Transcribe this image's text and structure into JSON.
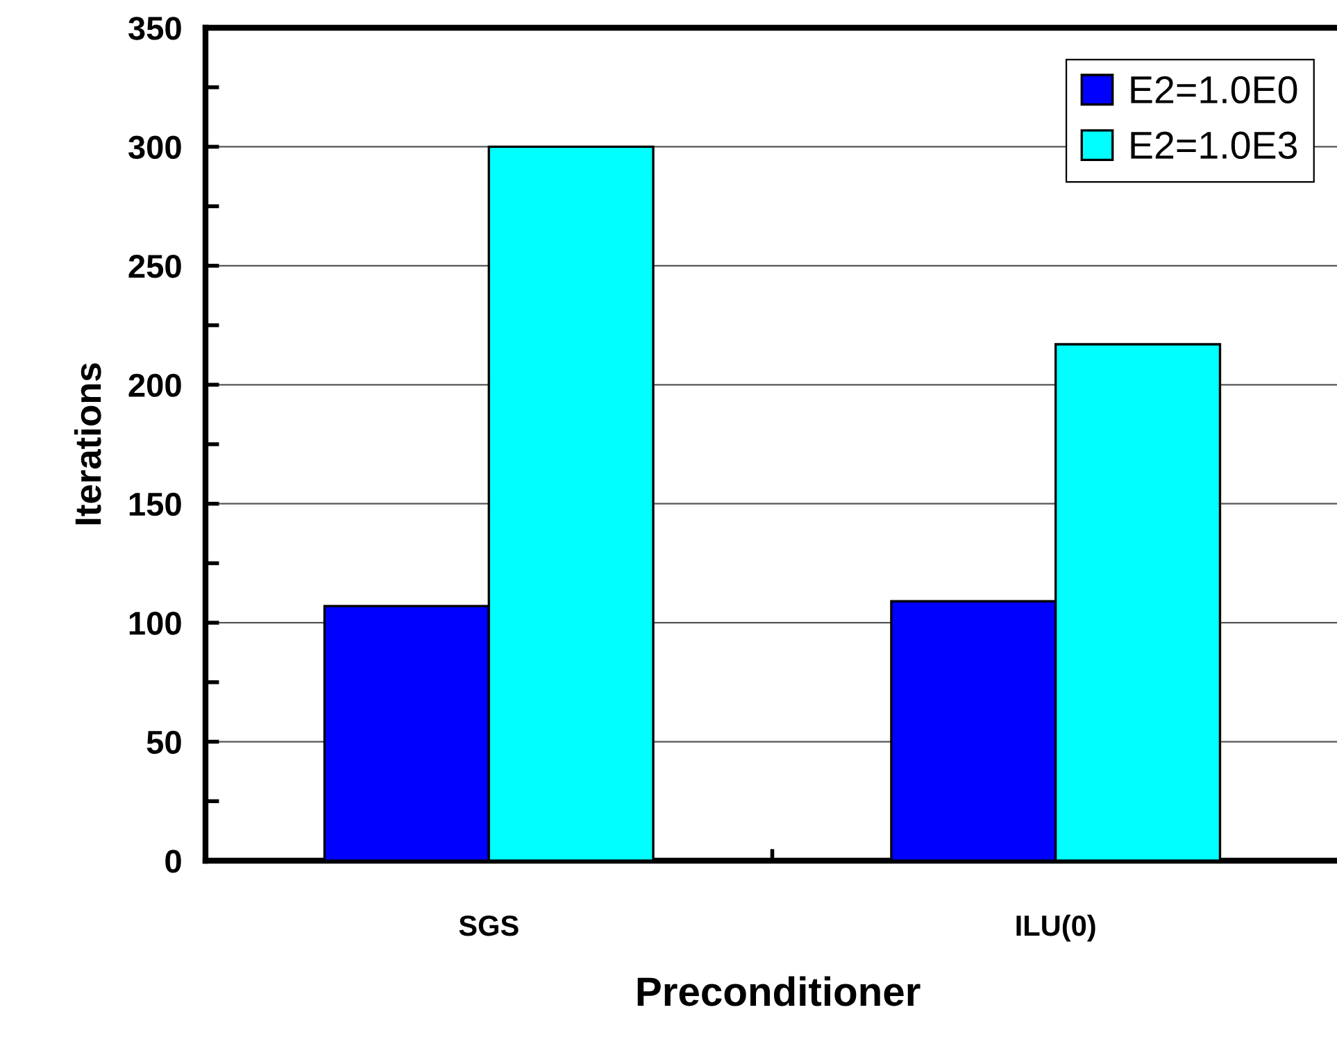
{
  "chart_data": {
    "type": "bar",
    "xlabel": "Preconditioner",
    "ylabel": "Iterations",
    "categories": [
      "SGS",
      "ILU(0)"
    ],
    "series": [
      {
        "name": "E2=1.0E0",
        "color": "#0000ff",
        "values": [
          107,
          109
        ]
      },
      {
        "name": "E2=1.0E3",
        "color": "#00ffff",
        "values": [
          300,
          217
        ]
      }
    ],
    "ylim": [
      0,
      350
    ],
    "yticks": [
      0,
      50,
      100,
      150,
      200,
      250,
      300,
      350
    ],
    "grid": "y",
    "legend": "top right"
  }
}
